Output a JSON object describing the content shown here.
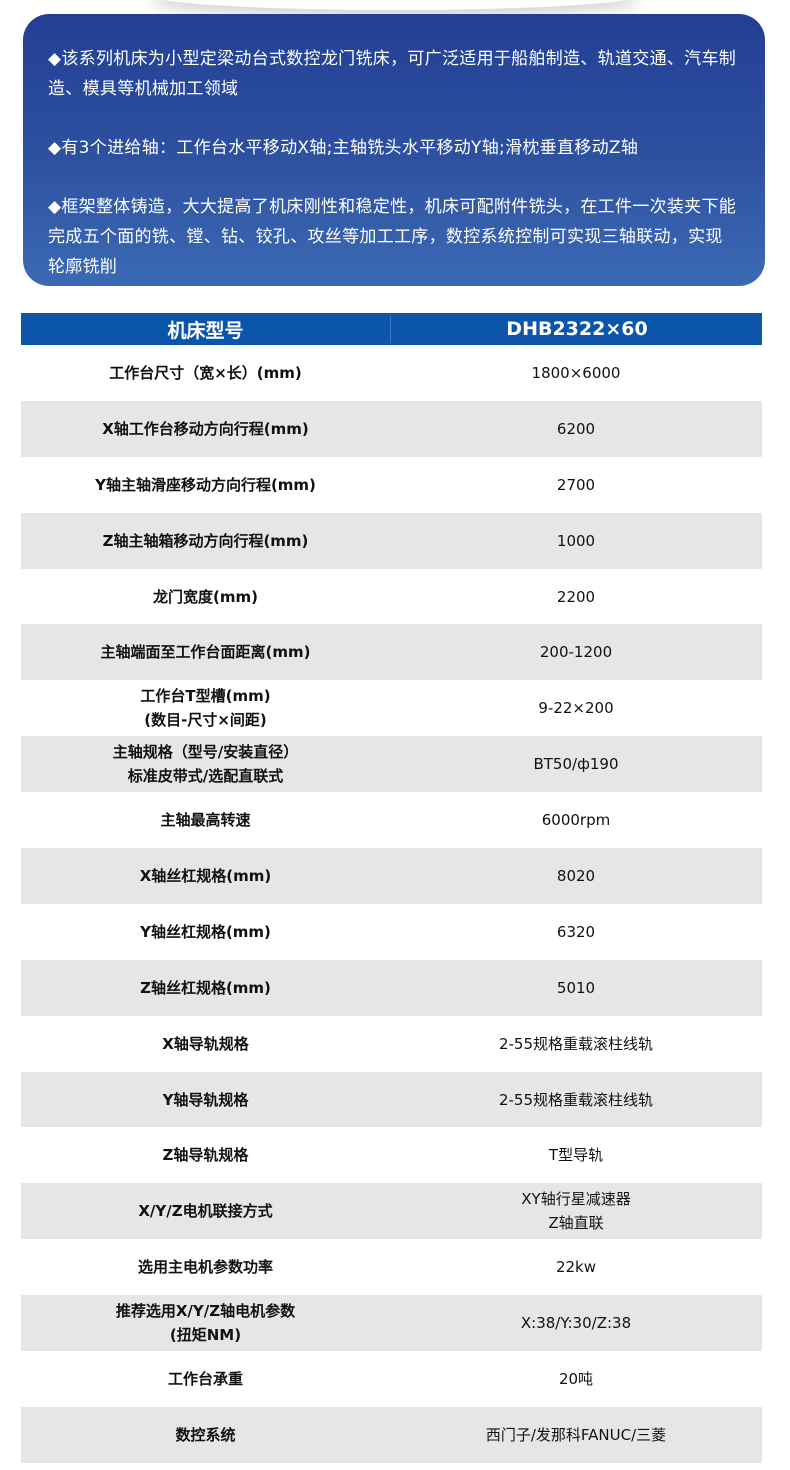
{
  "intro": {
    "paragraphs": [
      "◆该系列机床为小型定梁动台式数控龙门铣床，可广泛适用于船舶制造、轨道交通、汽车制造、模具等机械加工领域",
      "◆有3个进给轴：工作台水平移动X轴;主轴铣头水平移动Y轴;滑枕垂直移动Z轴",
      "◆框架整体铸造，大大提高了机床刚性和稳定性，机床可配附件铣头，在工件一次装夹下能完成五个面的铣、镗、钻、铰孔、攻丝等加工工序，数控系统控制可实现三轴联动，实现轮廓铣削"
    ]
  },
  "colors": {
    "card_top": "#233f95",
    "card_bottom": "#3b6ab4",
    "header": "#0b56a8",
    "row_alt": "#e6e6e6"
  },
  "table": {
    "header": [
      "机床型号",
      "DHB2322×60"
    ],
    "rows": [
      [
        "工作台尺寸（宽×长）(mm)",
        "1800×6000"
      ],
      [
        "X轴工作台移动方向行程(mm)",
        "6200"
      ],
      [
        "Y轴主轴滑座移动方向行程(mm)",
        "2700"
      ],
      [
        "Z轴主轴箱移动方向行程(mm)",
        "1000"
      ],
      [
        "龙门宽度(mm)",
        "2200"
      ],
      [
        "主轴端面至工作台面距离(mm)",
        "200-1200"
      ],
      [
        "工作台T型槽(mm)\n(数目-尺寸×间距)",
        "9-22×200"
      ],
      [
        "主轴规格（型号/安装直径）\n标准皮带式/选配直联式",
        "BT50/ф190"
      ],
      [
        "主轴最高转速",
        "6000rpm"
      ],
      [
        "X轴丝杠规格(mm)",
        "8020"
      ],
      [
        "Y轴丝杠规格(mm)",
        "6320"
      ],
      [
        "Z轴丝杠规格(mm)",
        "5010"
      ],
      [
        "X轴导轨规格",
        "2-55规格重载滚柱线轨"
      ],
      [
        "Y轴导轨规格",
        "2-55规格重载滚柱线轨"
      ],
      [
        "Z轴导轨规格",
        "T型导轨"
      ],
      [
        "X/Y/Z电机联接方式",
        "XY轴行星减速器\nZ轴直联"
      ],
      [
        "选用主电机参数功率",
        "22kw"
      ],
      [
        "推荐选用X/Y/Z轴电机参数\n(扭矩NM)",
        "X:38/Y:30/Z:38"
      ],
      [
        "工作台承重",
        "20吨"
      ],
      [
        "数控系统",
        "西门子/发那科FANUC/三菱"
      ]
    ]
  }
}
